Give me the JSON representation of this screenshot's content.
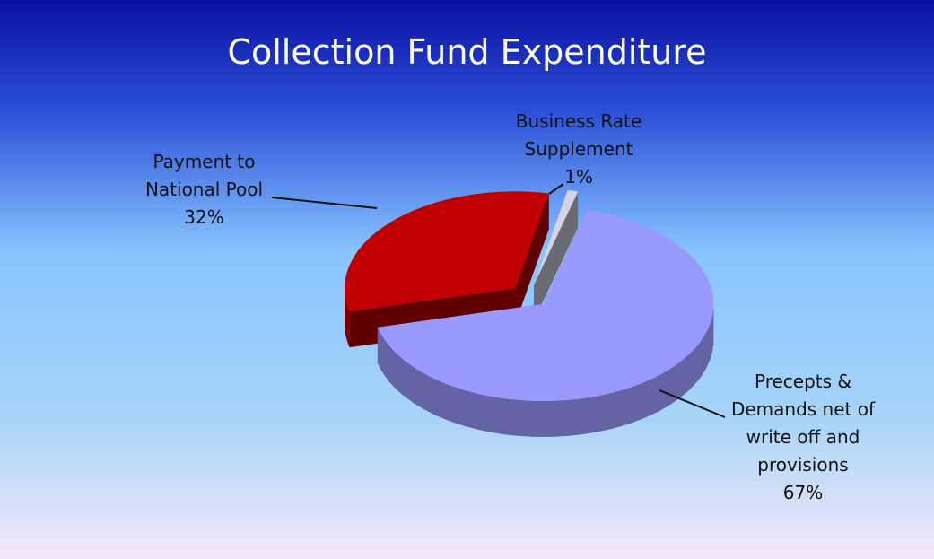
{
  "chart_data": {
    "type": "pie",
    "title": "Collection Fund Expenditure",
    "categories": [
      "Precepts & Demands net of write off and provisions",
      "Payment to National Pool",
      "Business Rate Supplement"
    ],
    "values": [
      67,
      32,
      1
    ],
    "value_labels": [
      "67%",
      "32%",
      "1%"
    ],
    "colors": [
      "#9999ff",
      "#c00000",
      "#d4d4e4"
    ]
  }
}
